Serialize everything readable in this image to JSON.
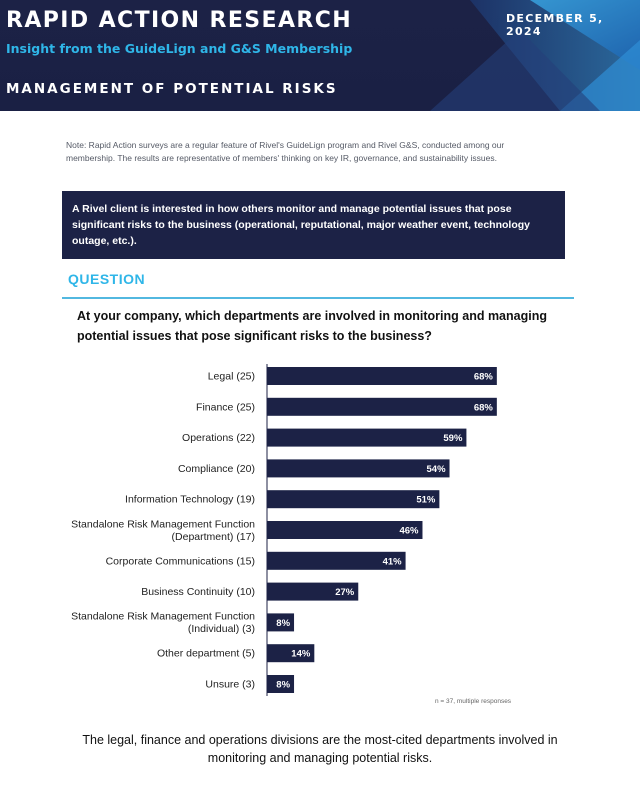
{
  "header": {
    "title": "RAPID ACTION RESEARCH",
    "date": "DECEMBER 5, 2024",
    "subtitle": "Insight from the GuideLign and G&S Membership",
    "section": "MANAGEMENT OF POTENTIAL RISKS"
  },
  "colors": {
    "navy": "#1c2246",
    "accent_blue": "#2fb6e8",
    "rule_blue": "#52b8e0"
  },
  "note": "Note: Rapid Action surveys are a regular feature of Rivel's GuideLign program and Rivel G&S, conducted among our membership. The results are representative of members' thinking on key IR, governance, and sustainability issues.",
  "callout": "A Rivel client is interested in how others monitor and manage potential issues that pose significant risks to the business (operational, reputational, major weather event, technology outage, etc.).",
  "question": {
    "heading": "QUESTION",
    "text": "At your company, which departments are involved in monitoring and managing potential issues that pose significant risks to the business?"
  },
  "chart_data": {
    "type": "bar",
    "orientation": "horizontal",
    "categories": [
      [
        "Legal (25)"
      ],
      [
        "Finance (25)"
      ],
      [
        "Operations (22)"
      ],
      [
        "Compliance (20)"
      ],
      [
        "Information Technology (19)"
      ],
      [
        "Standalone Risk Management Function",
        "(Department) (17)"
      ],
      [
        "Corporate Communications (15)"
      ],
      [
        "Business Continuity (10)"
      ],
      [
        "Standalone Risk Management Function",
        "(Individual) (3)"
      ],
      [
        "Other department (5)"
      ],
      [
        "Unsure (3)"
      ]
    ],
    "values": [
      68,
      68,
      59,
      54,
      51,
      46,
      41,
      27,
      8,
      14,
      8
    ],
    "value_labels": [
      "68%",
      "68%",
      "59%",
      "54%",
      "51%",
      "46%",
      "41%",
      "27%",
      "8%",
      "14%",
      "8%"
    ],
    "unit": "%",
    "xlim": [
      0,
      100
    ],
    "bar_color": "#1c2246",
    "grid": false,
    "legend": "none"
  },
  "sample_note": "n = 37, multiple responses",
  "footer": "The legal, finance and operations divisions are the most-cited departments involved in monitoring and managing potential risks."
}
